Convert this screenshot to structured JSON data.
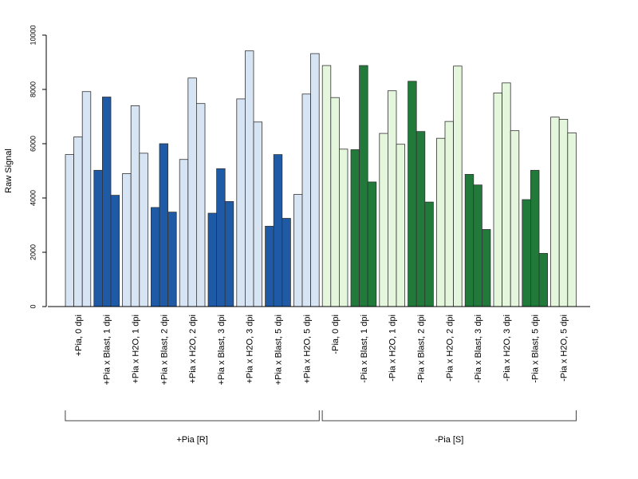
{
  "chart_data": {
    "type": "bar",
    "ylabel": "Raw Signal",
    "ylim": [
      0,
      10000
    ],
    "yticks": [
      0,
      2000,
      4000,
      6000,
      8000,
      10000
    ],
    "grid": false,
    "colors": {
      "light_blue": "#d6e4f4",
      "dark_blue": "#1f5aa6",
      "light_green": "#e4f6dc",
      "dark_green": "#217a3a",
      "border": "#333333"
    },
    "categories": [
      {
        "label": "+Pia, 0 dpi",
        "color": "light_blue",
        "values": [
          5600,
          6250,
          7920
        ]
      },
      {
        "label": "+Pia x Blast, 1 dpi",
        "color": "dark_blue",
        "values": [
          5020,
          7720,
          4100
        ]
      },
      {
        "label": "+Pia x H2O, 1 dpi",
        "color": "light_blue",
        "values": [
          4900,
          7400,
          5650
        ]
      },
      {
        "label": "+Pia x Blast, 2 dpi",
        "color": "dark_blue",
        "values": [
          3650,
          6000,
          3480
        ]
      },
      {
        "label": "+Pia x H2O, 2 dpi",
        "color": "light_blue",
        "values": [
          5420,
          8420,
          7480
        ]
      },
      {
        "label": "+Pia x Blast, 3 dpi",
        "color": "dark_blue",
        "values": [
          3440,
          5080,
          3870
        ]
      },
      {
        "label": "+Pia x H2O, 3 dpi",
        "color": "light_blue",
        "values": [
          7650,
          9420,
          6800
        ]
      },
      {
        "label": "+Pia x Blast, 5 dpi",
        "color": "dark_blue",
        "values": [
          2960,
          5600,
          3250
        ]
      },
      {
        "label": "+Pia x H2O, 5 dpi",
        "color": "light_blue",
        "values": [
          4130,
          7830,
          9320
        ]
      },
      {
        "label": "-Pia, 0 dpi",
        "color": "light_green",
        "values": [
          8880,
          7700,
          5800
        ]
      },
      {
        "label": "-Pia x Blast, 1 dpi",
        "color": "dark_green",
        "values": [
          5780,
          8880,
          4590
        ]
      },
      {
        "label": "-Pia x H2O, 1 dpi",
        "color": "light_green",
        "values": [
          6380,
          7950,
          5980
        ]
      },
      {
        "label": "-Pia x Blast, 2 dpi",
        "color": "dark_green",
        "values": [
          8300,
          6450,
          3850
        ]
      },
      {
        "label": "-Pia x H2O, 2 dpi",
        "color": "light_green",
        "values": [
          6200,
          6820,
          8860
        ]
      },
      {
        "label": "-Pia x Blast, 3 dpi",
        "color": "dark_green",
        "values": [
          4870,
          4480,
          2840
        ]
      },
      {
        "label": "-Pia x H2O, 3 dpi",
        "color": "light_green",
        "values": [
          7870,
          8240,
          6480
        ]
      },
      {
        "label": "-Pia x Blast, 5 dpi",
        "color": "dark_green",
        "values": [
          3940,
          5020,
          1960
        ]
      },
      {
        "label": "-Pia x H2O, 5 dpi",
        "color": "light_green",
        "values": [
          6980,
          6900,
          6400
        ]
      }
    ],
    "groups": [
      {
        "label": "+Pia [R]",
        "categories": [
          0,
          8
        ]
      },
      {
        "label": "-Pia [S]",
        "categories": [
          9,
          17
        ]
      }
    ]
  }
}
